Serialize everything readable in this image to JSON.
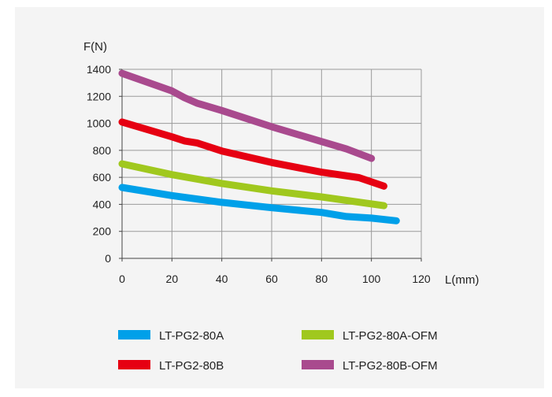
{
  "chart_data": {
    "type": "line",
    "xlabel": "L(mm)",
    "ylabel": "F(N)",
    "xlim": [
      0,
      120
    ],
    "ylim": [
      0,
      1400
    ],
    "x_ticks": [
      0,
      20,
      40,
      60,
      80,
      100,
      120
    ],
    "y_ticks": [
      0,
      200,
      400,
      600,
      800,
      1000,
      1200,
      1400
    ],
    "grid": true,
    "legend_position": "bottom",
    "series": [
      {
        "name": "LT-PG2-80A",
        "color": "#00a0e9",
        "x": [
          0,
          20,
          40,
          60,
          80,
          90,
          100,
          110
        ],
        "y": [
          525,
          465,
          415,
          375,
          340,
          310,
          298,
          278
        ]
      },
      {
        "name": "LT-PG2-80A-OFM",
        "color": "#a0c81e",
        "x": [
          0,
          20,
          40,
          60,
          80,
          105
        ],
        "y": [
          700,
          620,
          555,
          500,
          455,
          390
        ]
      },
      {
        "name": "LT-PG2-80B",
        "color": "#e60012",
        "x": [
          0,
          20,
          25,
          30,
          40,
          60,
          80,
          95,
          105
        ],
        "y": [
          1010,
          900,
          870,
          855,
          795,
          710,
          638,
          598,
          535
        ]
      },
      {
        "name": "LT-PG2-80B-OFM",
        "color": "#a94a8e",
        "x": [
          0,
          20,
          25,
          30,
          40,
          60,
          80,
          90,
          100
        ],
        "y": [
          1370,
          1240,
          1190,
          1150,
          1095,
          975,
          865,
          810,
          740
        ]
      }
    ]
  }
}
